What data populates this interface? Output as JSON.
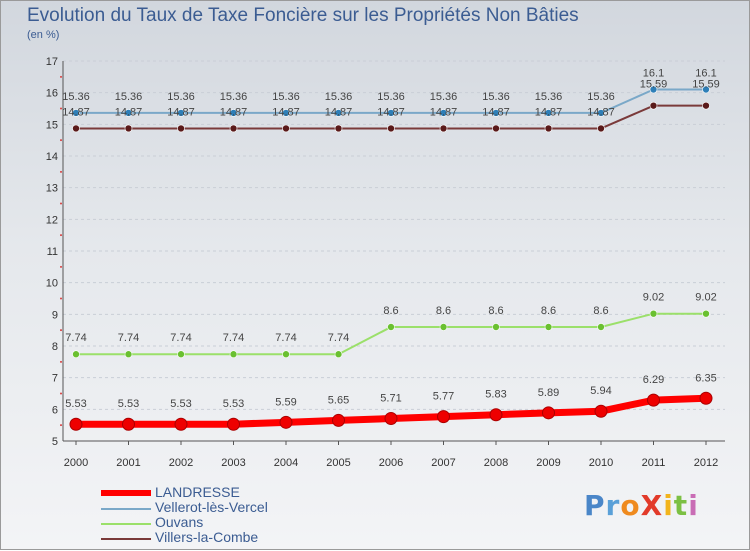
{
  "chart_data": {
    "type": "line",
    "title": "Evolution du Taux de Taxe Foncière sur les Propriétés Non Bâties",
    "ylabel": "(en %)",
    "xlabel": "",
    "ylim": [
      5,
      17
    ],
    "yticks": [
      "5",
      "6",
      "7",
      "8",
      "9",
      "10",
      "11",
      "12",
      "13",
      "14",
      "15",
      "16",
      "17"
    ],
    "x": [
      "2000",
      "2001",
      "2002",
      "2003",
      "2004",
      "2005",
      "2006",
      "2007",
      "2008",
      "2009",
      "2010",
      "2011",
      "2012"
    ],
    "series": [
      {
        "name": "LANDRESSE",
        "color": "#ff0000",
        "values": [
          5.53,
          5.53,
          5.53,
          5.53,
          5.59,
          5.65,
          5.71,
          5.77,
          5.83,
          5.89,
          5.94,
          6.29,
          6.35
        ],
        "labels": [
          "5.53",
          "5.53",
          "5.53",
          "5.53",
          "5.59",
          "5.65",
          "5.71",
          "5.77",
          "5.83",
          "5.89",
          "5.94",
          "6.29",
          "6.35"
        ]
      },
      {
        "name": "Vellerot-lès-Vercel",
        "color": "#7aa8c8",
        "values": [
          15.36,
          15.36,
          15.36,
          15.36,
          15.36,
          15.36,
          15.36,
          15.36,
          15.36,
          15.36,
          15.36,
          16.1,
          16.1
        ],
        "labels": [
          "15.36",
          "15.36",
          "15.36",
          "15.36",
          "15.36",
          "15.36",
          "15.36",
          "15.36",
          "15.36",
          "15.36",
          "15.36",
          "16.1",
          "16.1"
        ]
      },
      {
        "name": "Ouvans",
        "color": "#9be06a",
        "values": [
          7.74,
          7.74,
          7.74,
          7.74,
          7.74,
          7.74,
          8.6,
          8.6,
          8.6,
          8.6,
          8.6,
          9.02,
          9.02
        ],
        "labels": [
          "7.74",
          "7.74",
          "7.74",
          "7.74",
          "7.74",
          "7.74",
          "8.6",
          "8.6",
          "8.6",
          "8.6",
          "8.6",
          "9.02",
          "9.02"
        ]
      },
      {
        "name": "Villers-la-Combe",
        "color": "#7a3a3a",
        "values": [
          14.87,
          14.87,
          14.87,
          14.87,
          14.87,
          14.87,
          14.87,
          14.87,
          14.87,
          14.87,
          14.87,
          15.59,
          15.59
        ],
        "labels": [
          "14.87",
          "14.87",
          "14.87",
          "14.87",
          "14.87",
          "14.87",
          "14.87",
          "14.87",
          "14.87",
          "14.87",
          "14.87",
          "15.59",
          "15.59"
        ]
      }
    ],
    "legend_position": "bottom-left"
  },
  "logo": {
    "text": "ProXiti"
  }
}
